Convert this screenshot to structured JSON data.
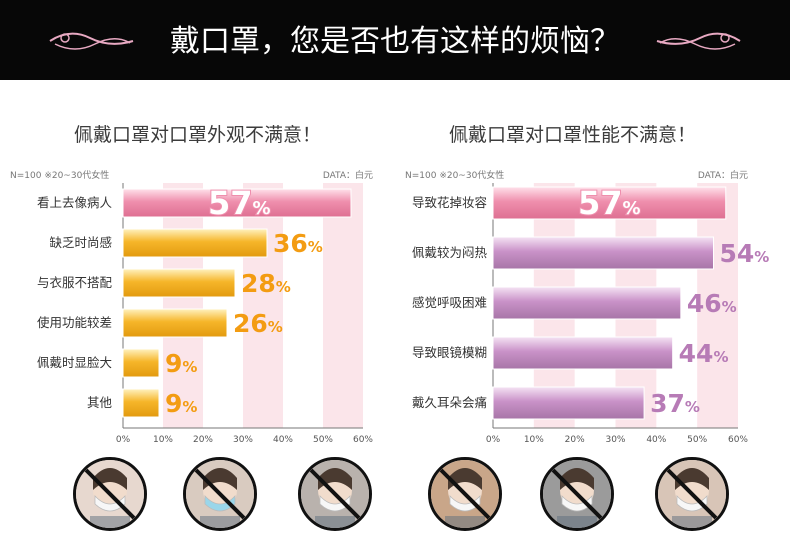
{
  "banner": {
    "title": "戴口罩，您是否也有这样的烦恼？"
  },
  "colors": {
    "pink_bar": "#ef8fad",
    "orange_bar": "#f6b62a",
    "lilac_bar": "#c992c8",
    "orange_label": "#f39c12",
    "lilac_label": "#b77bb6",
    "pink_stripe": "#fbe5ea"
  },
  "chart_data": [
    {
      "type": "bar",
      "orientation": "horizontal",
      "title": "佩戴口罩对口罩外观不满意！",
      "note": "N=100 ※20~30代女性",
      "source": "DATA：白元",
      "categories": [
        "看上去像病人",
        "缺乏时尚感",
        "与衣服不搭配",
        "使用功能较差",
        "佩戴时显脸大",
        "其他"
      ],
      "values": [
        57,
        36,
        28,
        26,
        9,
        9
      ],
      "value_suffix": "%",
      "xlim": [
        0,
        60
      ],
      "xticks": [
        "0%",
        "10%",
        "20%",
        "30%",
        "40%",
        "50%",
        "60%"
      ]
    },
    {
      "type": "bar",
      "orientation": "horizontal",
      "title": "佩戴口罩对口罩性能不满意！",
      "note": "N=100 ※20~30代女性",
      "source": "DATA：白元",
      "categories": [
        "导致花掉妆容",
        "佩戴较为闷热",
        "感觉呼吸困难",
        "导致眼镜模糊",
        "戴久耳朵会痛"
      ],
      "values": [
        57,
        54,
        46,
        44,
        37
      ],
      "value_suffix": "%",
      "xlim": [
        0,
        60
      ],
      "xticks": [
        "0%",
        "10%",
        "20%",
        "30%",
        "40%",
        "50%",
        "60%"
      ]
    }
  ],
  "photos": [
    {
      "icon": "prohibited-mask-photo-1"
    },
    {
      "icon": "prohibited-mask-photo-2"
    },
    {
      "icon": "prohibited-mask-photo-3"
    },
    {
      "icon": "prohibited-mask-photo-4"
    },
    {
      "icon": "prohibited-mask-photo-5"
    },
    {
      "icon": "prohibited-mask-photo-6"
    }
  ]
}
